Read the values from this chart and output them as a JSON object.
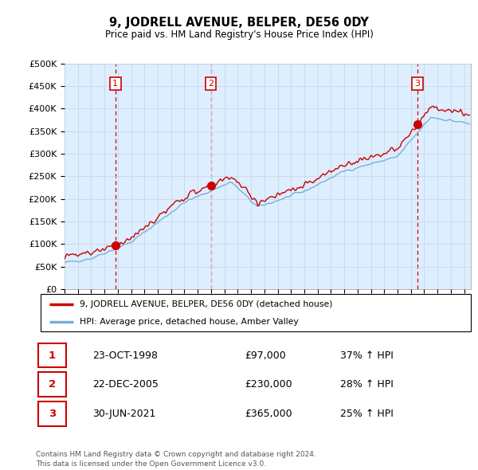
{
  "title": "9, JODRELL AVENUE, BELPER, DE56 0DY",
  "subtitle": "Price paid vs. HM Land Registry's House Price Index (HPI)",
  "ylabel_ticks": [
    "£0",
    "£50K",
    "£100K",
    "£150K",
    "£200K",
    "£250K",
    "£300K",
    "£350K",
    "£400K",
    "£450K",
    "£500K"
  ],
  "ytick_values": [
    0,
    50000,
    100000,
    150000,
    200000,
    250000,
    300000,
    350000,
    400000,
    450000,
    500000
  ],
  "ylim": [
    0,
    500000
  ],
  "xlim_start": 1995.0,
  "xlim_end": 2025.5,
  "sale_dates": [
    1998.81,
    2005.98,
    2021.5
  ],
  "sale_prices": [
    97000,
    230000,
    365000
  ],
  "sale_labels": [
    "1",
    "2",
    "3"
  ],
  "sale_label_color": "#cc0000",
  "hpi_color": "#7aaed6",
  "price_color": "#cc0000",
  "grid_color": "#c8d8e8",
  "vline_color": "#cc0000",
  "plot_bg_color": "#ddeeff",
  "shaded_bg_color": "#ccddf0",
  "legend_entries": [
    "9, JODRELL AVENUE, BELPER, DE56 0DY (detached house)",
    "HPI: Average price, detached house, Amber Valley"
  ],
  "table_rows": [
    {
      "num": "1",
      "date": "23-OCT-1998",
      "price": "£97,000",
      "change": "37% ↑ HPI"
    },
    {
      "num": "2",
      "date": "22-DEC-2005",
      "price": "£230,000",
      "change": "28% ↑ HPI"
    },
    {
      "num": "3",
      "date": "30-JUN-2021",
      "price": "£365,000",
      "change": "25% ↑ HPI"
    }
  ],
  "footer": "Contains HM Land Registry data © Crown copyright and database right 2024.\nThis data is licensed under the Open Government Licence v3.0.",
  "background_color": "#ffffff"
}
